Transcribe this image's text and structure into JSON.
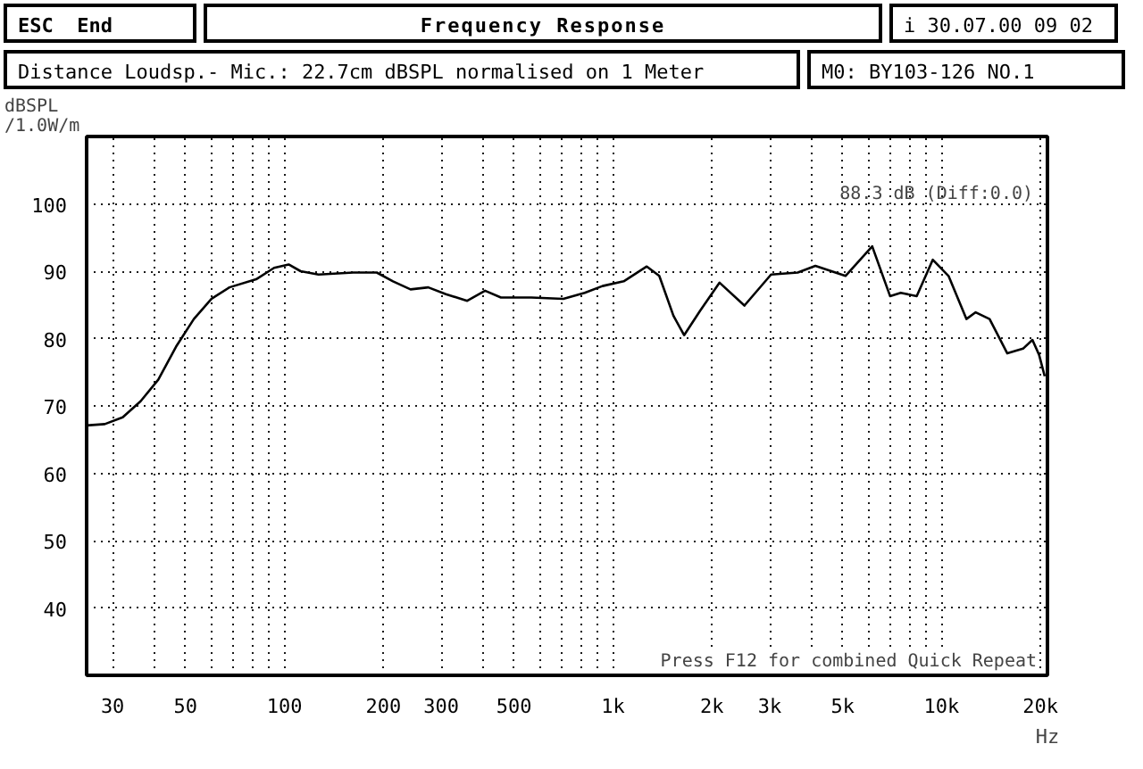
{
  "chart_data": {
    "type": "line",
    "title": "Frequency Response",
    "subtitle": "Distance Loudsp.- Mic.: 22.7cm dBSPL normalised on 1 Meter",
    "ylabel": "dBSPL\n/1.0W/m",
    "annotations": [
      "ESC  End",
      "i 30.07.00 09 02",
      "M0: BY103-126 NO.1",
      "88.3 dB (Diff:0.0)",
      "Press F12 for combined Quick Repeat"
    ],
    "log": "x",
    "grid": true,
    "line_style": "solid",
    "xlim": [
      25,
      21000
    ],
    "ylim": [
      30,
      110
    ],
    "xticks": [
      30,
      {
        "value": 40,
        "label": null
      },
      50,
      {
        "value": 60,
        "label": null
      },
      {
        "value": 70,
        "label": null
      },
      {
        "value": 80,
        "label": null
      },
      {
        "value": 90,
        "label": null
      },
      100,
      200,
      300,
      {
        "value": 400,
        "label": null
      },
      500,
      {
        "value": 600,
        "label": null
      },
      {
        "value": 700,
        "label": null
      },
      {
        "value": 800,
        "label": null
      },
      {
        "value": 900,
        "label": null
      },
      {
        "value": 1000,
        "label": "1k"
      },
      {
        "value": 2000,
        "label": "2k"
      },
      {
        "value": 3000,
        "label": "3k"
      },
      {
        "value": 4000,
        "label": null
      },
      {
        "value": 5000,
        "label": "5k"
      },
      {
        "value": 6000,
        "label": null
      },
      {
        "value": 7000,
        "label": null
      },
      {
        "value": 8000,
        "label": null
      },
      {
        "value": 9000,
        "label": null
      },
      {
        "value": 10000,
        "label": "10k"
      },
      {
        "value": 20000,
        "label": "20k"
      }
    ],
    "xlabel": "Hz",
    "yticks": [
      40,
      50,
      60,
      70,
      80,
      90,
      100
    ],
    "series": [
      {
        "color": "#000000",
        "x": [
          25,
          28.4,
          32.2,
          36.5,
          41.3,
          46.8,
          53,
          60,
          68,
          82,
          93,
          103,
          112,
          127,
          162,
          191,
          214,
          242,
          274,
          310,
          360,
          408,
          456,
          564,
          706,
          820,
          929,
          1078,
          1267,
          1383,
          1527,
          1646,
          1840,
          2110,
          2512,
          3027,
          3650,
          4130,
          5100,
          6150,
          6970,
          7510,
          8400,
          9400,
          10500,
          11900,
          12700,
          14000,
          15850,
          17700,
          18900,
          19800,
          20600
        ],
        "values": [
          67.1,
          67.3,
          68.3,
          70.7,
          73.9,
          78.8,
          82.9,
          85.9,
          87.6,
          88.8,
          90.5,
          91,
          90,
          89.5,
          89.8,
          89.8,
          88.5,
          87.3,
          87.6,
          86.6,
          85.6,
          87.1,
          86.1,
          86.1,
          85.9,
          86.8,
          87.8,
          88.5,
          90.7,
          89.3,
          83.4,
          80.5,
          84.1,
          88.3,
          84.9,
          89.5,
          89.8,
          90.8,
          89.3,
          93.7,
          86.3,
          86.8,
          86.3,
          91.7,
          89.3,
          82.9,
          83.9,
          82.9,
          77.8,
          78.5,
          79.8,
          77.6,
          74.4
        ]
      }
    ]
  }
}
